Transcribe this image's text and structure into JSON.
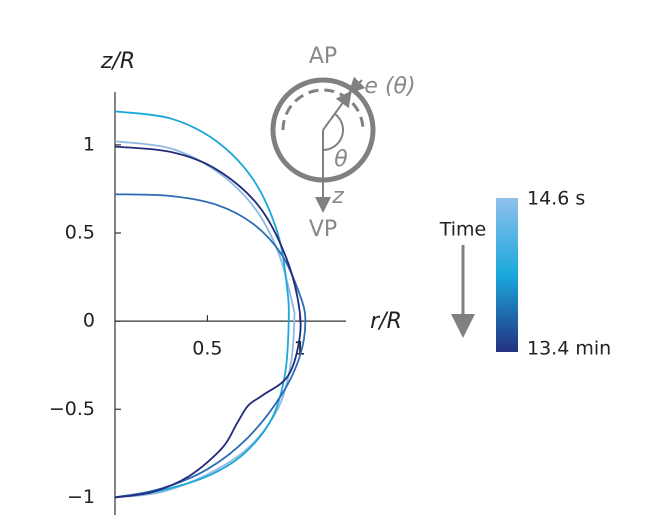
{
  "chart_data": {
    "type": "line",
    "x_label": "r/R",
    "y_label": "z/R",
    "xlim": [
      0,
      1.25
    ],
    "ylim": [
      -1.1,
      1.3
    ],
    "xticks": [
      0.5,
      1
    ],
    "yticks": [
      {
        "value": -1,
        "label": "−1"
      },
      {
        "value": -0.5,
        "label": "−0.5"
      },
      0,
      0.5,
      1
    ],
    "series": [
      {
        "color": "#8fb9e3",
        "x": [
          0,
          0.3,
          0.55,
          0.75,
          0.88,
          0.96,
          0.97,
          0.95,
          0.88,
          0.72,
          0.5,
          0.25,
          0
        ],
        "values": [
          1.02,
          0.98,
          0.85,
          0.65,
          0.4,
          0.1,
          0,
          -0.25,
          -0.5,
          -0.72,
          -0.87,
          -0.97,
          -1
        ]
      },
      {
        "color": "#1ba8d9",
        "x": [
          0,
          0.3,
          0.55,
          0.75,
          0.88,
          0.93,
          0.94,
          0.92,
          0.85,
          0.7,
          0.5,
          0.25,
          0
        ],
        "values": [
          1.19,
          1.15,
          1.02,
          0.8,
          0.5,
          0.2,
          0,
          -0.3,
          -0.55,
          -0.75,
          -0.88,
          -0.96,
          -1
        ]
      },
      {
        "color": "#2b6cb3",
        "x": [
          0,
          0.3,
          0.55,
          0.75,
          0.9,
          1.0,
          1.03,
          1.0,
          0.9,
          0.72,
          0.5,
          0.25,
          0
        ],
        "values": [
          0.72,
          0.71,
          0.66,
          0.55,
          0.38,
          0.15,
          0,
          -0.2,
          -0.42,
          -0.66,
          -0.84,
          -0.95,
          -1
        ]
      },
      {
        "color": "#232b7c",
        "x": [
          0,
          0.3,
          0.55,
          0.78,
          0.93,
          1.0,
          0.99,
          0.93,
          0.8,
          0.72,
          0.66,
          0.58,
          0.4,
          0.2,
          0
        ],
        "values": [
          0.99,
          0.96,
          0.86,
          0.65,
          0.35,
          0.05,
          -0.15,
          -0.32,
          -0.42,
          -0.48,
          -0.58,
          -0.72,
          -0.88,
          -0.97,
          -1
        ]
      }
    ],
    "inset": {
      "top": "AP",
      "bottom": "VP",
      "thickness": "e (θ)",
      "angle": "θ",
      "axis": "z"
    },
    "colorbar": {
      "title": "Time",
      "top_label": "14.6 s",
      "bottom_label": "13.4 min",
      "colors": [
        "#8fc0ea",
        "#1aa8dc",
        "#243080"
      ]
    }
  }
}
